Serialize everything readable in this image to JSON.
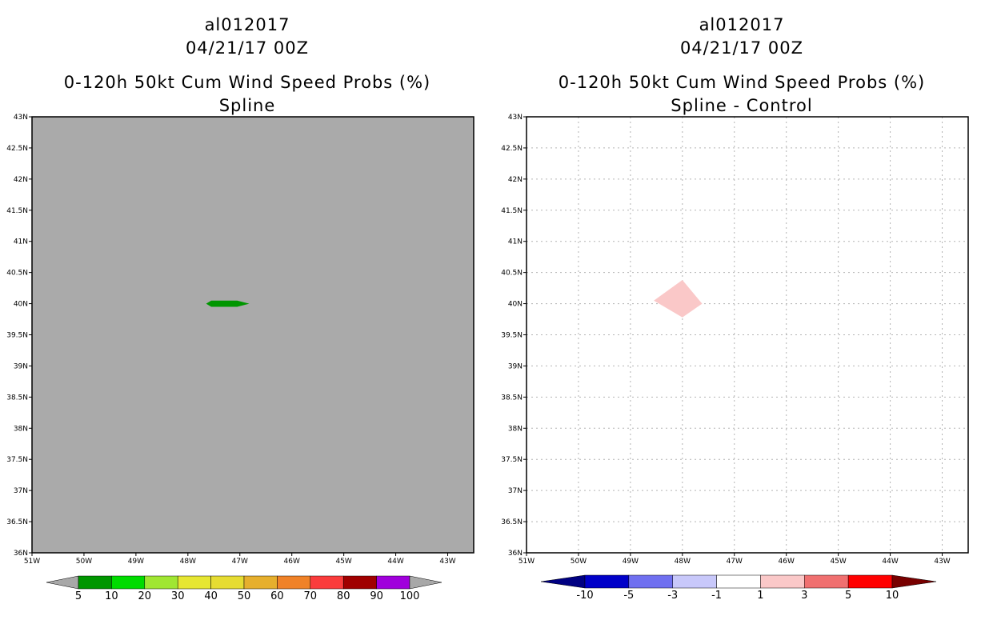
{
  "chart_data": [
    {
      "type": "map",
      "id": "left",
      "title_lines": [
        "al012017",
        "04/21/17 00Z",
        "0-120h 50kt Cum Wind Speed Probs (%)",
        "Spline"
      ],
      "lat_range": [
        36,
        43
      ],
      "lon_range": [
        -51,
        -42.5
      ],
      "lat_ticks": [
        43,
        42.5,
        42,
        41.5,
        41,
        40.5,
        40,
        39.5,
        39,
        38.5,
        38,
        37.5,
        37,
        36.5,
        36
      ],
      "lat_tick_labels": [
        "43N",
        "42.5N",
        "42N",
        "41.5N",
        "41N",
        "40.5N",
        "40N",
        "39.5N",
        "39N",
        "38.5N",
        "38N",
        "37.5N",
        "37N",
        "36.5N",
        "36N"
      ],
      "lon_ticks": [
        -51,
        -50,
        -49,
        -48,
        -47,
        -46,
        -45,
        -44,
        -43
      ],
      "lon_tick_labels": [
        "51W",
        "50W",
        "49W",
        "48W",
        "47W",
        "46W",
        "45W",
        "44W",
        "43W"
      ],
      "background": "#aaaaaa",
      "grid": false,
      "features": [
        {
          "name": "prob-5-10-region",
          "color": "#009600",
          "points": [
            [
              -47.65,
              40.0
            ],
            [
              -47.55,
              39.95
            ],
            [
              -47.05,
              39.95
            ],
            [
              -46.82,
              40.0
            ],
            [
              -47.05,
              40.05
            ],
            [
              -47.55,
              40.05
            ]
          ]
        }
      ],
      "colorbar": {
        "labels": [
          "5",
          "10",
          "20",
          "30",
          "40",
          "50",
          "60",
          "70",
          "80",
          "90",
          "100"
        ],
        "colors": [
          "#009600",
          "#00dc00",
          "#a0e632",
          "#e6e632",
          "#e6dc32",
          "#e6af2d",
          "#f08228",
          "#fa3c3c",
          "#a00000",
          "#a000dc"
        ],
        "under_color": "#a8a8a8",
        "over_color": "#a8a8a8"
      }
    },
    {
      "type": "map",
      "id": "right",
      "title_lines": [
        "al012017",
        "04/21/17 00Z",
        "0-120h 50kt Cum Wind Speed Probs (%)",
        "Spline - Control"
      ],
      "lat_range": [
        36,
        43
      ],
      "lon_range": [
        -51,
        -42.5
      ],
      "lat_ticks": [
        43,
        42.5,
        42,
        41.5,
        41,
        40.5,
        40,
        39.5,
        39,
        38.5,
        38,
        37.5,
        37,
        36.5,
        36
      ],
      "lat_tick_labels": [
        "43N",
        "42.5N",
        "42N",
        "41.5N",
        "41N",
        "40.5N",
        "40N",
        "39.5N",
        "39N",
        "38.5N",
        "38N",
        "37.5N",
        "37N",
        "36.5N",
        "36N"
      ],
      "lon_ticks": [
        -51,
        -50,
        -49,
        -48,
        -47,
        -46,
        -45,
        -44,
        -43
      ],
      "lon_tick_labels": [
        "51W",
        "50W",
        "49W",
        "48W",
        "47W",
        "46W",
        "45W",
        "44W",
        "43W"
      ],
      "background": "#ffffff",
      "grid": true,
      "features": [
        {
          "name": "diff-1-3-region",
          "color": "#fac8c8",
          "points": [
            [
              -48.55,
              40.05
            ],
            [
              -48.0,
              40.38
            ],
            [
              -47.62,
              40.0
            ],
            [
              -48.0,
              39.78
            ]
          ]
        }
      ],
      "colorbar": {
        "labels": [
          "-10",
          "-5",
          "-3",
          "-1",
          "1",
          "3",
          "5",
          "10"
        ],
        "colors": [
          "#0000c8",
          "#7070f0",
          "#c8c8fa",
          "#ffffff",
          "#fac8c8",
          "#f07070",
          "#ff0000"
        ],
        "under_color": "#000082",
        "over_color": "#780000"
      }
    }
  ]
}
